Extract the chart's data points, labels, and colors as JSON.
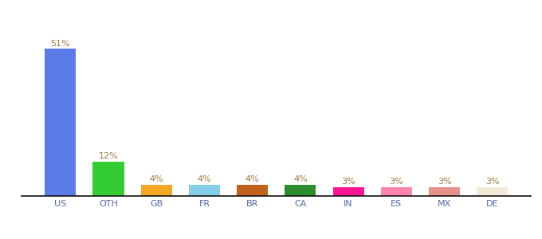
{
  "categories": [
    "US",
    "OTH",
    "GB",
    "FR",
    "BR",
    "CA",
    "IN",
    "ES",
    "MX",
    "DE"
  ],
  "values": [
    51,
    12,
    4,
    4,
    4,
    4,
    3,
    3,
    3,
    3
  ],
  "labels": [
    "51%",
    "12%",
    "4%",
    "4%",
    "4%",
    "4%",
    "3%",
    "3%",
    "3%",
    "3%"
  ],
  "bar_colors": [
    "#5b7be8",
    "#33cc33",
    "#f5a623",
    "#87ceeb",
    "#c0621a",
    "#2d8c2d",
    "#ff1493",
    "#ff85b0",
    "#e8908a",
    "#f0ead6"
  ],
  "background_color": "#ffffff",
  "ylim": [
    0,
    58
  ],
  "label_fontsize": 8,
  "tick_fontsize": 8,
  "label_color": "#a07840",
  "tick_color": "#5566aa"
}
